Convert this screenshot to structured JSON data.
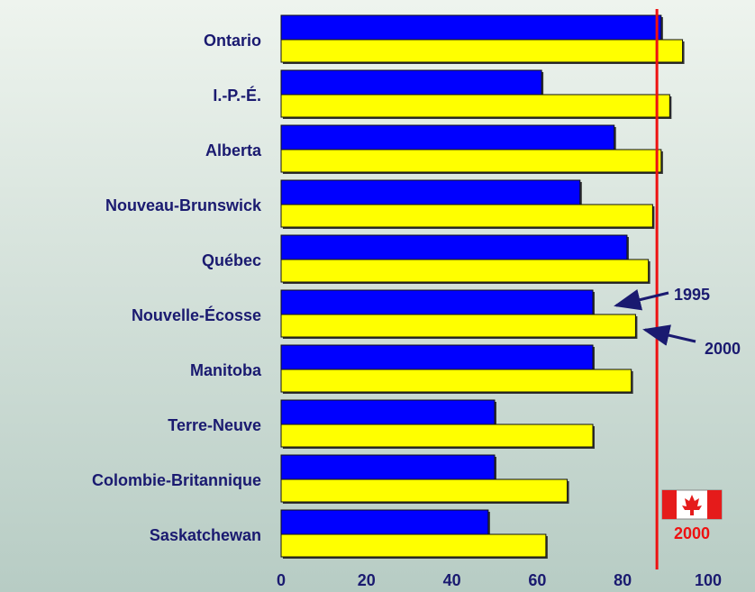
{
  "chart_data": {
    "type": "bar",
    "orientation": "horizontal",
    "categories": [
      "Ontario",
      "I.-P.-É.",
      "Alberta",
      "Nouveau-Brunswick",
      "Québec",
      "Nouvelle-Écosse",
      "Manitoba",
      "Terre-Neuve",
      "Colombie-Britannique",
      "Saskatchewan"
    ],
    "series": [
      {
        "name": "1995",
        "color": "#0000ff",
        "values": [
          89,
          61,
          78,
          70,
          81,
          73,
          73,
          50,
          50,
          48.5
        ]
      },
      {
        "name": "2000",
        "color": "#ffff00",
        "values": [
          94,
          91,
          89,
          87,
          86,
          83,
          82,
          73,
          67,
          62
        ]
      }
    ],
    "xlim": [
      0,
      100
    ],
    "xticks": [
      0,
      20,
      40,
      60,
      80,
      100
    ],
    "reference_line": {
      "value": 88,
      "label": "2000",
      "color": "#ee1111"
    }
  }
}
